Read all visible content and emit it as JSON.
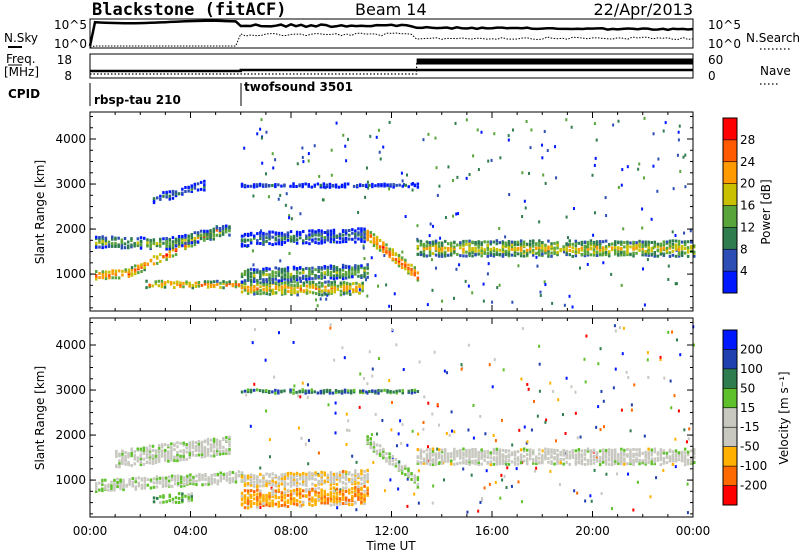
{
  "header": {
    "station": "Blackstone (fitACF)",
    "beam": "Beam 14",
    "date": "22/Apr/2013"
  },
  "left_labels": {
    "nsky": "N.Sky",
    "freq_line1": "Freq.",
    "freq_line2": "[MHz]",
    "cpid": "CPID"
  },
  "right_labels": {
    "nsearch": "N.Search",
    "nave": "Nave"
  },
  "noise_panel": {
    "left_ticks": [
      "10^5",
      "10^0"
    ],
    "right_ticks": [
      "10^5",
      "10^0"
    ]
  },
  "freq_panel": {
    "left_ticks": [
      "18",
      "8"
    ],
    "right_ticks": [
      "60",
      "0"
    ]
  },
  "cpid_panel": {
    "programs": [
      "rbsp-tau 210",
      "twofsound 3501"
    ]
  },
  "colors": {
    "power_scale": [
      "#0018ff",
      "#2c4eb5",
      "#2f7d4e",
      "#5aa43c",
      "#c8c000",
      "#ff9a00",
      "#ff5a00",
      "#ff0000"
    ],
    "velocity_scale": [
      "#ff0000",
      "#ff6a00",
      "#ffb000",
      "#c8c8c0",
      "#c8c8c0",
      "#5ec02a",
      "#2f7d4e",
      "#2040b0",
      "#0018ff"
    ]
  },
  "chart_data": [
    {
      "type": "heatmap",
      "panel": "power",
      "xlabel": "",
      "ylabel": "Slant Range [km]",
      "x_ticks": [
        "00:00",
        "04:00",
        "08:00",
        "12:00",
        "16:00",
        "20:00",
        "00:00"
      ],
      "y_ticks": [
        "1000",
        "2000",
        "3000",
        "4000"
      ],
      "xlim_hours": [
        0,
        24
      ],
      "ylim_km": [
        180,
        4600
      ],
      "colorbar": {
        "label": "Power [dB]",
        "ticks": [
          "4",
          "8",
          "12",
          "16",
          "20",
          "24",
          "28"
        ],
        "range": [
          0,
          30
        ]
      },
      "echo_regions": [
        {
          "t": [
            0.2,
            1.5
          ],
          "r_center": [
            1000,
            1050
          ],
          "width": 200,
          "level": 26
        },
        {
          "t": [
            1.5,
            5.0
          ],
          "r_center": [
            1050,
            2000
          ],
          "width": 200,
          "level": 25
        },
        {
          "t": [
            0.2,
            3.0
          ],
          "r_center": [
            1750,
            1700
          ],
          "width": 250,
          "level": 15
        },
        {
          "t": [
            3.0,
            5.5
          ],
          "r_center": [
            1700,
            2000
          ],
          "width": 250,
          "level": 15
        },
        {
          "t": [
            2.5,
            4.5
          ],
          "r_center": [
            2700,
            3000
          ],
          "width": 200,
          "level": 9
        },
        {
          "t": [
            2.2,
            6.0
          ],
          "r_center": [
            800,
            800
          ],
          "width": 150,
          "level": 23
        },
        {
          "t": [
            6.0,
            10.8
          ],
          "r_center": [
            720,
            720
          ],
          "width": 300,
          "level": 21
        },
        {
          "t": [
            6.0,
            11.0
          ],
          "r_center": [
            1000,
            1100
          ],
          "width": 300,
          "level": 15
        },
        {
          "t": [
            6.0,
            11.0
          ],
          "r_center": [
            1800,
            1900
          ],
          "width": 300,
          "level": 10
        },
        {
          "t": [
            6.0,
            13.0
          ],
          "r_center": [
            3000,
            3000
          ],
          "width": 80,
          "level": 8
        },
        {
          "t": [
            11.0,
            13.0
          ],
          "r_center": [
            1900,
            1000
          ],
          "width": 250,
          "level": 26
        },
        {
          "t": [
            13.0,
            24.0
          ],
          "r_center": [
            1600,
            1600
          ],
          "width": 350,
          "level": 19
        }
      ]
    },
    {
      "type": "heatmap",
      "panel": "velocity",
      "xlabel": "Time UT",
      "ylabel": "Slant Range [km]",
      "x_ticks": [
        "00:00",
        "04:00",
        "08:00",
        "12:00",
        "16:00",
        "20:00",
        "00:00"
      ],
      "y_ticks": [
        "1000",
        "2000",
        "3000",
        "4000"
      ],
      "xlim_hours": [
        0,
        24
      ],
      "ylim_km": [
        180,
        4600
      ],
      "colorbar": {
        "label": "Velocity [m s⁻¹]",
        "ticks": [
          "200",
          "100",
          "50",
          "15",
          "-15",
          "-50",
          "-100",
          "-200"
        ],
        "range": [
          -250,
          250
        ]
      },
      "echo_regions": [
        {
          "t": [
            0.2,
            6.0
          ],
          "r_center": [
            900,
            1100
          ],
          "width": 250,
          "level": 0
        },
        {
          "t": [
            1.0,
            5.5
          ],
          "r_center": [
            1500,
            1800
          ],
          "width": 400,
          "level": 0
        },
        {
          "t": [
            2.5,
            4.0
          ],
          "r_center": [
            600,
            650
          ],
          "width": 200,
          "level": 60
        },
        {
          "t": [
            6.0,
            11.0
          ],
          "r_center": [
            600,
            700
          ],
          "width": 400,
          "level": -120
        },
        {
          "t": [
            6.0,
            11.0
          ],
          "r_center": [
            1000,
            1100
          ],
          "width": 300,
          "level": -60
        },
        {
          "t": [
            6.0,
            13.0
          ],
          "r_center": [
            3000,
            3000
          ],
          "width": 80,
          "level": 120
        },
        {
          "t": [
            11.0,
            13.0
          ],
          "r_center": [
            1900,
            1000
          ],
          "width": 250,
          "level": 30
        },
        {
          "t": [
            13.0,
            24.0
          ],
          "r_center": [
            1550,
            1550
          ],
          "width": 350,
          "level": -20
        }
      ]
    }
  ]
}
